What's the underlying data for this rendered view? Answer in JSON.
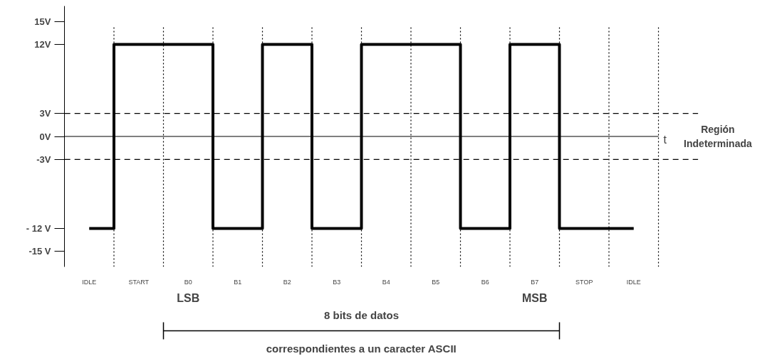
{
  "chart_data": {
    "type": "step",
    "xlabel": "t",
    "categories": [
      "IDLE",
      "START",
      "B0",
      "B1",
      "B2",
      "B3",
      "B4",
      "B5",
      "B6",
      "B7",
      "STOP",
      "IDLE"
    ],
    "series": [
      {
        "color": "#000000",
        "values": [
          -12,
          12,
          12,
          -12,
          12,
          -12,
          12,
          12,
          -12,
          12,
          -12,
          -12
        ]
      }
    ],
    "ylim": [
      -17,
      17
    ],
    "yticks": [
      {
        "value": 15,
        "label": "15V"
      },
      {
        "value": 12,
        "label": "12V"
      },
      {
        "value": 3,
        "label": "3V"
      },
      {
        "value": 0,
        "label": "0V"
      },
      {
        "value": -3,
        "label": "-3V"
      },
      {
        "value": -12,
        "label": "- 12 V"
      },
      {
        "value": -15,
        "label": "-15 V"
      }
    ],
    "ref_lines": [
      {
        "axis": "y",
        "value": 3,
        "line_style": "dashed"
      },
      {
        "axis": "y",
        "value": 0,
        "line_style": "solid"
      },
      {
        "axis": "y",
        "value": -3,
        "line_style": "dashed"
      }
    ],
    "annotations": [
      "Región Indeterminada",
      "LSB",
      "MSB",
      "8 bits de datos",
      "correspondientes a un caracter ASCII"
    ],
    "grid": false,
    "line_style": "solid"
  }
}
